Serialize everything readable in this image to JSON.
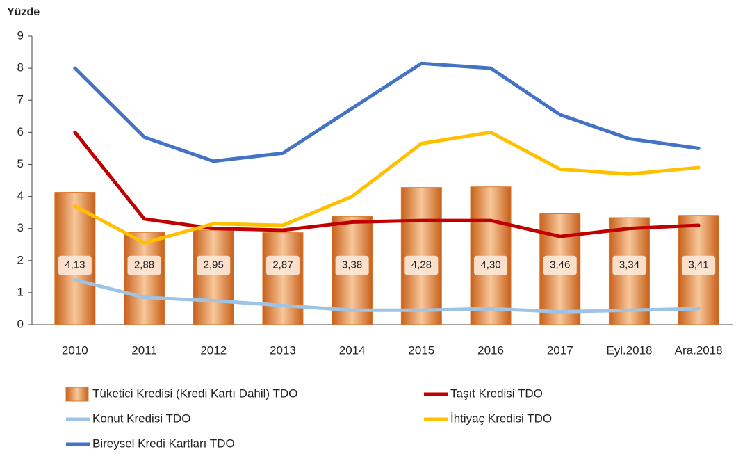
{
  "chart_data": {
    "type": "bar",
    "ylabel": "Yüzde",
    "categories": [
      "2010",
      "2011",
      "2012",
      "2013",
      "2014",
      "2015",
      "2016",
      "2017",
      "Eyl.2018",
      "Ara.2018"
    ],
    "ylim": [
      0,
      9
    ],
    "yticks": [
      0,
      1,
      2,
      3,
      4,
      5,
      6,
      7,
      8,
      9
    ],
    "series": [
      {
        "name": "Tüketici Kredisi (Kredi Kartı Dahil) TDO",
        "type": "bar",
        "color": "#d9782e",
        "values": [
          4.13,
          2.88,
          2.95,
          2.87,
          3.38,
          4.28,
          4.3,
          3.46,
          3.34,
          3.41
        ],
        "value_labels": [
          "4,13",
          "2,88",
          "2,95",
          "2,87",
          "3,38",
          "4,28",
          "4,30",
          "3,46",
          "3,34",
          "3,41"
        ]
      },
      {
        "name": "Taşıt Kredisi TDO",
        "type": "line",
        "color": "#c00000",
        "values": [
          6.0,
          3.3,
          3.0,
          2.95,
          3.2,
          3.25,
          3.25,
          2.75,
          3.0,
          3.1
        ]
      },
      {
        "name": "Konut Kredisi TDO",
        "type": "line",
        "color": "#9dc3e6",
        "values": [
          1.4,
          0.85,
          0.75,
          0.6,
          0.45,
          0.45,
          0.5,
          0.4,
          0.45,
          0.5
        ]
      },
      {
        "name": "İhtiyaç Kredisi TDO",
        "type": "line",
        "color": "#ffc000",
        "values": [
          3.7,
          2.55,
          3.15,
          3.1,
          4.0,
          5.65,
          6.0,
          4.85,
          4.7,
          4.9
        ]
      },
      {
        "name": "Bireysel Kredi Kartları TDO",
        "type": "line",
        "color": "#4472c4",
        "values": [
          8.0,
          5.85,
          5.1,
          5.35,
          6.75,
          8.15,
          8.0,
          6.55,
          5.8,
          5.5
        ]
      }
    ]
  }
}
